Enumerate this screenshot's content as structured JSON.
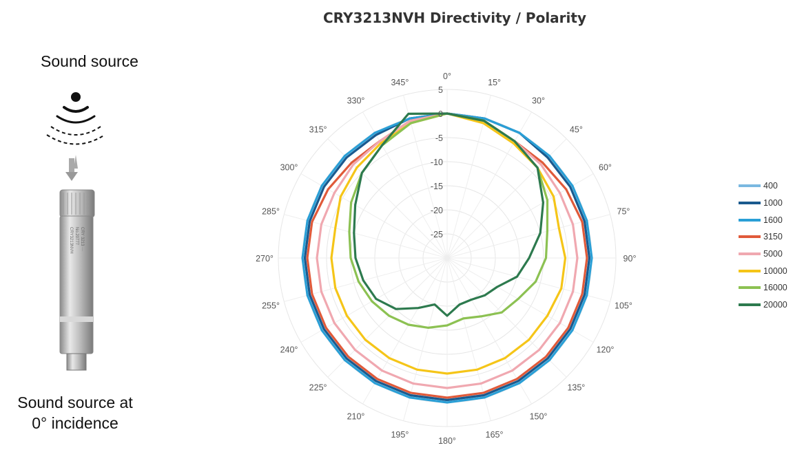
{
  "left_panel": {
    "source_label": "Sound source",
    "incidence_label": "Sound source at\n0° incidence",
    "mic_engraving": [
      "CRY3213NVH",
      "No.20777",
      "CRY 3213 ···"
    ]
  },
  "chart_data": {
    "type": "radar",
    "title": "CRY3213NVH Directivity / Polarity",
    "angles": [
      0,
      15,
      30,
      45,
      60,
      75,
      90,
      105,
      120,
      135,
      150,
      165,
      180,
      195,
      210,
      225,
      240,
      255,
      270,
      285,
      300,
      315,
      330,
      345
    ],
    "angle_labels": [
      "0°",
      "15°",
      "30°",
      "45°",
      "60°",
      "75°",
      "90°",
      "105°",
      "120°",
      "135°",
      "150°",
      "165°",
      "180°",
      "195°",
      "210°",
      "225°",
      "240°",
      "255°",
      "270°",
      "285°",
      "300°",
      "315°",
      "330°",
      "345°"
    ],
    "r_ticks": [
      5,
      0,
      -5,
      -10,
      -15,
      -20,
      -25
    ],
    "r_tick_labels": [
      "5",
      "0",
      "-5",
      "-10",
      "-15",
      "-20",
      "-25"
    ],
    "r_range": [
      -30,
      5
    ],
    "grid": true,
    "legend_position": "right",
    "series": [
      {
        "name": "400",
        "color": "#7ab8e0",
        "values": [
          0,
          0,
          0,
          -0.5,
          -0.5,
          -0.5,
          -0.5,
          -0.5,
          -0.5,
          -0.5,
          -0.5,
          -0.5,
          -0.5,
          -0.5,
          -0.5,
          -0.5,
          -0.5,
          -0.5,
          -0.5,
          -0.5,
          -0.5,
          -0.5,
          -0.5,
          0
        ]
      },
      {
        "name": "1000",
        "color": "#1a5a8e",
        "values": [
          0,
          0,
          0,
          -0.5,
          -0.5,
          -0.5,
          -0.5,
          -0.5,
          -0.5,
          -0.5,
          -0.5,
          -0.5,
          -0.5,
          -0.5,
          -0.5,
          -0.5,
          -0.5,
          -0.5,
          -0.5,
          -0.5,
          -0.5,
          -0.5,
          -0.5,
          0
        ]
      },
      {
        "name": "1600",
        "color": "#2a9fd6",
        "values": [
          0,
          0,
          0,
          0,
          0,
          0,
          0,
          0,
          0,
          0,
          0,
          0,
          0,
          0,
          0,
          0,
          0,
          0,
          0,
          0,
          0,
          0,
          0,
          0
        ]
      },
      {
        "name": "3150",
        "color": "#e05a3a",
        "values": [
          0,
          -0.5,
          -2,
          -2,
          -1.5,
          -1,
          -1,
          -1,
          -1,
          -1,
          -1,
          -1,
          -1,
          -1,
          -1,
          -1,
          -1,
          -1,
          -1,
          -1,
          -1.5,
          -2,
          -2,
          -0.5
        ]
      },
      {
        "name": "5000",
        "color": "#f0a8b0",
        "values": [
          0,
          -0.5,
          -2,
          -2.5,
          -3,
          -3,
          -3,
          -3,
          -3,
          -3,
          -3,
          -3,
          -3,
          -3,
          -3,
          -3,
          -3,
          -3,
          -3,
          -3,
          -3,
          -2.5,
          -2,
          -0.5
        ]
      },
      {
        "name": "10000",
        "color": "#f5c518",
        "values": [
          0,
          -1,
          -2.5,
          -3.5,
          -4.5,
          -6,
          -5.5,
          -5.5,
          -6,
          -6,
          -6,
          -6,
          -6,
          -6,
          -6,
          -6,
          -6,
          -6,
          -6,
          -6,
          -4.5,
          -3.5,
          -2.5,
          -1
        ]
      },
      {
        "name": "16000",
        "color": "#8cc152",
        "values": [
          0,
          -0.5,
          -2,
          -3.5,
          -6,
          -8.5,
          -9.5,
          -11,
          -13,
          -14,
          -16,
          -17,
          -16,
          -15,
          -14,
          -13,
          -12,
          -11,
          -10,
          -9,
          -7,
          -5,
          -3,
          -1
        ]
      },
      {
        "name": "20000",
        "color": "#2d7a4e",
        "values": [
          0,
          -0.5,
          -2,
          -3.5,
          -7,
          -10,
          -13,
          -15,
          -18,
          -19,
          -20,
          -20,
          -18,
          -20,
          -18,
          -15,
          -13,
          -12,
          -11,
          -10,
          -8,
          -5,
          -3,
          1
        ]
      }
    ]
  }
}
